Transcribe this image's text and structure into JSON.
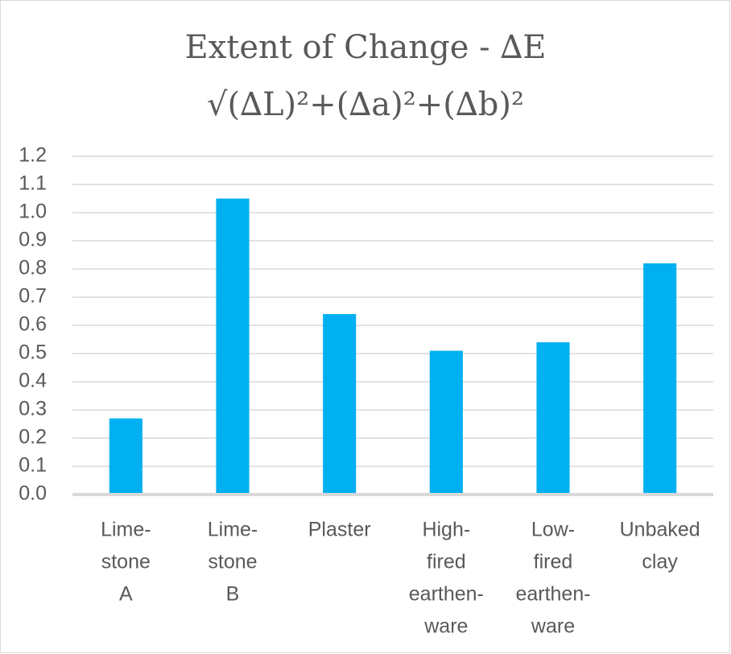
{
  "chart_data": {
    "type": "bar",
    "title": "Extent of Change - ∆E",
    "subtitle": "√(∆L)²+(∆a)²+(∆b)²",
    "categories": [
      [
        "Lime-",
        "stone",
        "A"
      ],
      [
        "Lime-",
        "stone",
        "B"
      ],
      [
        "Plaster"
      ],
      [
        "High-",
        "fired",
        "earthen-",
        "ware"
      ],
      [
        "Low-",
        "fired",
        "earthen-",
        "ware"
      ],
      [
        "Unbaked",
        "clay"
      ]
    ],
    "values": [
      0.27,
      1.05,
      0.64,
      0.51,
      0.54,
      0.82
    ],
    "color": "#00b0f0",
    "ylim": [
      0,
      1.2
    ],
    "yticks": [
      {
        "value": 0,
        "label": "0.0"
      },
      0.1,
      0.2,
      0.3,
      0.4,
      0.5,
      0.6,
      0.7,
      0.8,
      0.9,
      {
        "value": 1,
        "label": "1.0"
      },
      1.1,
      1.2
    ],
    "grid": true
  }
}
